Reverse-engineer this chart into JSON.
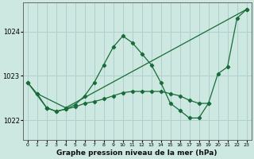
{
  "bg_color": "#cce8e0",
  "grid_color": "#aacccc",
  "line_color": "#1a6b3a",
  "xlabel": "Graphe pression niveau de la mer (hPa)",
  "ylim": [
    1021.55,
    1024.65
  ],
  "xlim": [
    -0.5,
    23.5
  ],
  "yticks": [
    1022,
    1023,
    1024
  ],
  "xticks": [
    0,
    1,
    2,
    3,
    4,
    5,
    6,
    7,
    8,
    9,
    10,
    11,
    12,
    13,
    14,
    15,
    16,
    17,
    18,
    19,
    20,
    21,
    22,
    23
  ],
  "series": [
    {
      "x": [
        0,
        1,
        2,
        3,
        4,
        5,
        6,
        7,
        8,
        9,
        10,
        11,
        12,
        13,
        14,
        15,
        16,
        17,
        18,
        19,
        20,
        21,
        22,
        23
      ],
      "y": [
        1022.85,
        1022.6,
        1022.28,
        1022.2,
        1022.25,
        1022.35,
        1022.55,
        1022.85,
        1023.25,
        1023.65,
        1023.9,
        1023.75,
        1023.5,
        1023.25,
        1022.85,
        1022.38,
        1022.22,
        1022.05,
        1022.05,
        1022.38,
        1023.05,
        1023.2,
        1024.3,
        1024.5
      ]
    },
    {
      "x": [
        1,
        4,
        23
      ],
      "y": [
        1022.6,
        1022.28,
        1024.5
      ]
    },
    {
      "x": [
        2,
        3,
        4,
        5,
        6,
        7,
        8,
        9,
        10,
        11,
        12,
        13,
        14,
        15,
        16,
        17,
        18,
        19
      ],
      "y": [
        1022.28,
        1022.2,
        1022.25,
        1022.3,
        1022.38,
        1022.42,
        1022.48,
        1022.55,
        1022.62,
        1022.65,
        1022.65,
        1022.65,
        1022.65,
        1022.6,
        1022.55,
        1022.45,
        1022.38,
        1022.38
      ]
    },
    {
      "x": [
        0,
        2
      ],
      "y": [
        1022.85,
        1022.28
      ]
    }
  ]
}
